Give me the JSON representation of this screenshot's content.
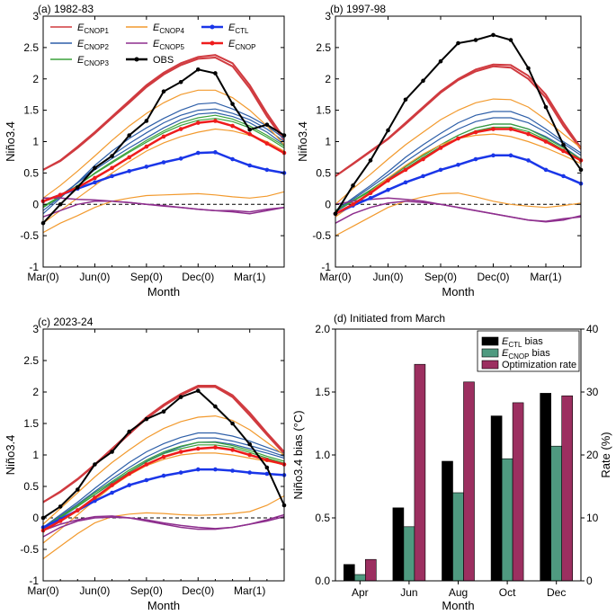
{
  "figure": {
    "colors": {
      "cnop1": "#d03a3f",
      "cnop2": "#2e5fa8",
      "cnop3": "#3aa23a",
      "cnop4": "#f29a2e",
      "cnop5": "#8e2f8e",
      "obs": "#000000",
      "ctl": "#1a36e8",
      "cnop": "#ee1c1c",
      "bar_ctl": "#000000",
      "bar_cnop": "#4f9a80",
      "bar_rate": "#9c2f60"
    }
  },
  "chart_data": [
    {
      "type": "line",
      "panel": "a",
      "title": "(a) 1982-83",
      "xlabel": "Month",
      "ylabel": "Niño3.4",
      "x_ticks": [
        "Mar(0)",
        "Jun(0)",
        "Sep(0)",
        "Dec(0)",
        "Mar(1)"
      ],
      "y_ticks": [
        "-1",
        "-0.5",
        "0",
        "0.5",
        "1",
        "1.5",
        "2",
        "2.5",
        "3"
      ],
      "ylim": [
        -1,
        3
      ],
      "xlim": [
        0,
        14
      ],
      "zero_line": "dashed",
      "legend": {
        "position": "top",
        "entries": [
          {
            "series": "cnop1",
            "label": "E",
            "sub": "CNOP1"
          },
          {
            "series": "cnop4",
            "label": "E",
            "sub": "CNOP4"
          },
          {
            "series": "ctl",
            "label": "E",
            "sub": "CTL"
          },
          {
            "series": "cnop2",
            "label": "E",
            "sub": "CNOP2"
          },
          {
            "series": "cnop5",
            "label": "E",
            "sub": "CNOP5"
          },
          {
            "series": "cnop",
            "label": "E",
            "sub": "CNOP"
          },
          {
            "series": "cnop3",
            "label": "E",
            "sub": "CNOP3"
          },
          {
            "series": "obs",
            "label": "OBS",
            "sub": ""
          }
        ]
      },
      "obs": [
        -0.3,
        0.0,
        0.27,
        0.58,
        0.77,
        1.1,
        1.33,
        1.8,
        1.95,
        2.15,
        2.09,
        1.6,
        1.19,
        1.27,
        1.1
      ],
      "ctl": [
        0.05,
        0.15,
        0.25,
        0.35,
        0.45,
        0.53,
        0.6,
        0.67,
        0.73,
        0.82,
        0.83,
        0.72,
        0.62,
        0.55,
        0.5
      ],
      "cnop": [
        0.05,
        0.15,
        0.27,
        0.42,
        0.58,
        0.75,
        0.92,
        1.08,
        1.2,
        1.3,
        1.33,
        1.25,
        1.12,
        0.97,
        0.82
      ],
      "ensemble": [
        {
          "group": "cnop1",
          "values": [
            0.55,
            0.7,
            0.92,
            1.15,
            1.4,
            1.65,
            1.9,
            2.1,
            2.25,
            2.35,
            2.38,
            2.25,
            1.9,
            1.45,
            1.05
          ]
        },
        {
          "group": "cnop1",
          "values": [
            0.55,
            0.69,
            0.9,
            1.13,
            1.38,
            1.62,
            1.87,
            2.07,
            2.22,
            2.32,
            2.34,
            2.2,
            1.85,
            1.4,
            1.02
          ]
        },
        {
          "group": "cnop2",
          "values": [
            -0.15,
            0.1,
            0.35,
            0.62,
            0.85,
            1.05,
            1.22,
            1.37,
            1.5,
            1.6,
            1.62,
            1.52,
            1.4,
            1.25,
            1.05
          ]
        },
        {
          "group": "cnop2",
          "values": [
            -0.1,
            0.12,
            0.35,
            0.58,
            0.78,
            0.97,
            1.14,
            1.3,
            1.42,
            1.5,
            1.52,
            1.45,
            1.35,
            1.2,
            1.0
          ]
        },
        {
          "group": "cnop2",
          "values": [
            -0.05,
            0.14,
            0.34,
            0.55,
            0.73,
            0.9,
            1.06,
            1.22,
            1.35,
            1.44,
            1.46,
            1.4,
            1.3,
            1.15,
            0.95
          ]
        },
        {
          "group": "cnop3",
          "values": [
            -0.05,
            0.12,
            0.3,
            0.5,
            0.68,
            0.85,
            1.02,
            1.17,
            1.3,
            1.38,
            1.42,
            1.36,
            1.25,
            1.1,
            0.93
          ]
        },
        {
          "group": "cnop3",
          "values": [
            -0.03,
            0.13,
            0.3,
            0.49,
            0.66,
            0.83,
            0.99,
            1.14,
            1.26,
            1.34,
            1.37,
            1.32,
            1.22,
            1.07,
            0.9
          ]
        },
        {
          "group": "cnop4",
          "values": [
            0.1,
            0.3,
            0.53,
            0.77,
            1.02,
            1.25,
            1.45,
            1.62,
            1.75,
            1.82,
            1.82,
            1.7,
            1.5,
            1.25,
            0.95
          ]
        },
        {
          "group": "cnop4",
          "values": [
            -0.45,
            -0.3,
            -0.18,
            -0.05,
            0.05,
            0.1,
            0.14,
            0.15,
            0.16,
            0.17,
            0.15,
            0.12,
            0.1,
            0.13,
            0.2
          ]
        },
        {
          "group": "cnop4",
          "values": [
            -0.3,
            -0.1,
            0.1,
            0.3,
            0.5,
            0.68,
            0.85,
            0.98,
            1.08,
            1.15,
            1.2,
            1.17,
            1.1,
            1.0,
            0.85
          ]
        },
        {
          "group": "cnop5",
          "values": [
            0.1,
            0.1,
            0.08,
            0.07,
            0.05,
            0.03,
            0.0,
            -0.02,
            -0.05,
            -0.08,
            -0.1,
            -0.12,
            -0.15,
            -0.1,
            -0.05
          ]
        },
        {
          "group": "cnop5",
          "values": [
            -0.2,
            -0.1,
            0.0,
            0.05,
            0.05,
            0.03,
            0.0,
            -0.03,
            -0.05,
            -0.08,
            -0.1,
            -0.1,
            -0.12,
            -0.08,
            -0.05
          ]
        }
      ]
    },
    {
      "type": "line",
      "panel": "b",
      "title": "(b) 1997-98",
      "xlabel": "Month",
      "ylabel": "Niño3.4",
      "x_ticks": [
        "Mar(0)",
        "Jun(0)",
        "Sep(0)",
        "Dec(0)",
        "Mar(1)"
      ],
      "y_ticks": [
        "-1",
        "-0.5",
        "0",
        "0.5",
        "1",
        "1.5",
        "2",
        "2.5",
        "3"
      ],
      "ylim": [
        -1,
        3
      ],
      "xlim": [
        0,
        14
      ],
      "zero_line": "dashed",
      "obs": [
        -0.15,
        0.3,
        0.7,
        1.18,
        1.67,
        1.97,
        2.28,
        2.57,
        2.62,
        2.7,
        2.62,
        2.17,
        1.55,
        0.95,
        0.55
      ],
      "ctl": [
        -0.15,
        -0.02,
        0.1,
        0.23,
        0.35,
        0.45,
        0.55,
        0.63,
        0.72,
        0.78,
        0.78,
        0.7,
        0.55,
        0.45,
        0.33
      ],
      "cnop": [
        -0.15,
        0.0,
        0.18,
        0.38,
        0.55,
        0.72,
        0.9,
        1.05,
        1.15,
        1.2,
        1.2,
        1.12,
        1.0,
        0.85,
        0.7
      ],
      "ensemble": [
        {
          "group": "cnop1",
          "values": [
            0.45,
            0.65,
            0.85,
            1.05,
            1.3,
            1.55,
            1.8,
            2.0,
            2.15,
            2.23,
            2.22,
            2.05,
            1.75,
            1.3,
            0.9
          ]
        },
        {
          "group": "cnop1",
          "values": [
            0.45,
            0.64,
            0.84,
            1.04,
            1.28,
            1.53,
            1.78,
            1.98,
            2.12,
            2.2,
            2.18,
            2.0,
            1.7,
            1.25,
            0.88
          ]
        },
        {
          "group": "cnop2",
          "values": [
            -0.1,
            0.1,
            0.3,
            0.52,
            0.75,
            0.95,
            1.13,
            1.3,
            1.42,
            1.48,
            1.48,
            1.38,
            1.2,
            1.0,
            0.82
          ]
        },
        {
          "group": "cnop2",
          "values": [
            -0.1,
            0.08,
            0.27,
            0.47,
            0.68,
            0.87,
            1.05,
            1.2,
            1.32,
            1.38,
            1.38,
            1.3,
            1.15,
            0.97,
            0.78
          ]
        },
        {
          "group": "cnop2",
          "values": [
            -0.12,
            0.05,
            0.22,
            0.4,
            0.6,
            0.78,
            0.95,
            1.1,
            1.22,
            1.28,
            1.28,
            1.2,
            1.08,
            0.92,
            0.72
          ]
        },
        {
          "group": "cnop3",
          "values": [
            -0.1,
            0.06,
            0.23,
            0.42,
            0.6,
            0.78,
            0.95,
            1.1,
            1.22,
            1.28,
            1.28,
            1.2,
            1.06,
            0.9,
            0.72
          ]
        },
        {
          "group": "cnop3",
          "values": [
            -0.1,
            0.05,
            0.21,
            0.39,
            0.57,
            0.75,
            0.92,
            1.06,
            1.17,
            1.23,
            1.23,
            1.16,
            1.03,
            0.87,
            0.7
          ]
        },
        {
          "group": "cnop4",
          "values": [
            0.0,
            0.25,
            0.48,
            0.72,
            0.95,
            1.15,
            1.35,
            1.5,
            1.62,
            1.68,
            1.67,
            1.55,
            1.35,
            1.12,
            0.9
          ]
        },
        {
          "group": "cnop4",
          "values": [
            -0.5,
            -0.35,
            -0.2,
            -0.05,
            0.05,
            0.12,
            0.17,
            0.18,
            0.12,
            0.05,
            0.0,
            -0.03,
            -0.05,
            -0.02,
            0.02
          ]
        },
        {
          "group": "cnop4",
          "values": [
            -0.2,
            0.0,
            0.2,
            0.42,
            0.62,
            0.8,
            0.95,
            1.05,
            1.1,
            1.12,
            1.08,
            1.0,
            0.9,
            0.78,
            0.65
          ]
        },
        {
          "group": "cnop5",
          "values": [
            0.0,
            0.05,
            0.08,
            0.1,
            0.08,
            0.05,
            0.0,
            -0.05,
            -0.1,
            -0.15,
            -0.2,
            -0.25,
            -0.27,
            -0.23,
            -0.2
          ]
        },
        {
          "group": "cnop5",
          "values": [
            -0.3,
            -0.15,
            -0.05,
            0.02,
            0.05,
            0.03,
            0.0,
            -0.05,
            -0.1,
            -0.15,
            -0.2,
            -0.25,
            -0.28,
            -0.25,
            -0.18
          ]
        }
      ]
    },
    {
      "type": "line",
      "panel": "c",
      "title": "(c) 2023-24",
      "xlabel": "Month",
      "ylabel": "Niño3.4",
      "x_ticks": [
        "Mar(0)",
        "Jun(0)",
        "Sep(0)",
        "Dec(0)",
        "Mar(1)"
      ],
      "y_ticks": [
        "-1",
        "-0.5",
        "0",
        "0.5",
        "1",
        "1.5",
        "2",
        "2.5",
        "3"
      ],
      "ylim": [
        -1,
        3
      ],
      "xlim": [
        0,
        14
      ],
      "zero_line": "dashed",
      "obs": [
        0.0,
        0.18,
        0.45,
        0.85,
        1.05,
        1.37,
        1.57,
        1.69,
        1.92,
        2.02,
        1.77,
        1.5,
        1.17,
        0.8,
        0.2
      ],
      "ctl": [
        -0.15,
        -0.02,
        0.12,
        0.27,
        0.4,
        0.52,
        0.6,
        0.67,
        0.72,
        0.77,
        0.77,
        0.75,
        0.72,
        0.7,
        0.68
      ],
      "cnop": [
        -0.2,
        -0.05,
        0.12,
        0.32,
        0.52,
        0.7,
        0.85,
        0.97,
        1.05,
        1.1,
        1.12,
        1.08,
        1.0,
        0.92,
        0.85
      ],
      "ensemble": [
        {
          "group": "cnop1",
          "values": [
            0.25,
            0.42,
            0.62,
            0.85,
            1.1,
            1.35,
            1.6,
            1.8,
            1.97,
            2.1,
            2.1,
            1.95,
            1.67,
            1.35,
            1.05
          ]
        },
        {
          "group": "cnop1",
          "values": [
            0.25,
            0.41,
            0.61,
            0.84,
            1.08,
            1.33,
            1.58,
            1.78,
            1.95,
            2.08,
            2.08,
            1.92,
            1.63,
            1.32,
            1.02
          ]
        },
        {
          "group": "cnop2",
          "values": [
            -0.15,
            0.05,
            0.25,
            0.47,
            0.68,
            0.88,
            1.05,
            1.18,
            1.28,
            1.35,
            1.35,
            1.3,
            1.22,
            1.12,
            1.02
          ]
        },
        {
          "group": "cnop2",
          "values": [
            -0.15,
            0.03,
            0.22,
            0.42,
            0.62,
            0.8,
            0.97,
            1.1,
            1.2,
            1.27,
            1.27,
            1.22,
            1.15,
            1.07,
            0.98
          ]
        },
        {
          "group": "cnop2",
          "values": [
            -0.18,
            0.0,
            0.18,
            0.37,
            0.56,
            0.73,
            0.9,
            1.03,
            1.13,
            1.2,
            1.21,
            1.17,
            1.1,
            1.03,
            0.95
          ]
        },
        {
          "group": "cnop3",
          "values": [
            -0.15,
            0.02,
            0.2,
            0.4,
            0.58,
            0.76,
            0.92,
            1.05,
            1.14,
            1.2,
            1.2,
            1.15,
            1.07,
            0.98,
            0.9
          ]
        },
        {
          "group": "cnop3",
          "values": [
            -0.15,
            0.01,
            0.18,
            0.37,
            0.55,
            0.73,
            0.89,
            1.02,
            1.1,
            1.16,
            1.16,
            1.12,
            1.04,
            0.95,
            0.87
          ]
        },
        {
          "group": "cnop4",
          "values": [
            -0.1,
            0.15,
            0.4,
            0.65,
            0.88,
            1.08,
            1.27,
            1.42,
            1.53,
            1.6,
            1.62,
            1.55,
            1.4,
            1.2,
            1.0
          ]
        },
        {
          "group": "cnop4",
          "values": [
            -0.65,
            -0.45,
            -0.25,
            -0.08,
            0.02,
            0.06,
            0.08,
            0.07,
            0.05,
            0.04,
            0.05,
            0.07,
            0.1,
            0.2,
            0.35
          ]
        },
        {
          "group": "cnop4",
          "values": [
            -0.4,
            -0.18,
            0.05,
            0.28,
            0.5,
            0.68,
            0.83,
            0.93,
            1.0,
            1.03,
            1.03,
            1.0,
            0.95,
            0.9,
            0.85
          ]
        },
        {
          "group": "cnop5",
          "values": [
            -0.2,
            -0.1,
            -0.03,
            0.02,
            0.03,
            0.0,
            -0.03,
            -0.08,
            -0.12,
            -0.15,
            -0.17,
            -0.15,
            -0.1,
            -0.05,
            0.02
          ]
        },
        {
          "group": "cnop5",
          "values": [
            -0.3,
            -0.15,
            -0.05,
            0.0,
            0.01,
            0.0,
            -0.05,
            -0.1,
            -0.15,
            -0.18,
            -0.18,
            -0.15,
            -0.1,
            -0.03,
            0.05
          ]
        }
      ]
    },
    {
      "type": "bar",
      "panel": "d",
      "title": "(d) Initiated from March",
      "xlabel": "Month",
      "ylabel": "Niño3.4 bias (°C)",
      "ylabel2": "Rate (%)",
      "categories": [
        "Apr",
        "Jun",
        "Aug",
        "Oct",
        "Dec"
      ],
      "y_ticks": [
        "0.0",
        "0.5",
        "1.0",
        "1.5",
        "2.0"
      ],
      "y2_ticks": [
        "0",
        "10",
        "20",
        "30",
        "40"
      ],
      "ylim": [
        0,
        2
      ],
      "y2lim": [
        0,
        40
      ],
      "legend": {
        "position": "top-right",
        "entries": [
          {
            "series": "bar_ctl",
            "label": "E",
            "sub": "CTL",
            "suffix": " bias"
          },
          {
            "series": "bar_cnop",
            "label": "E",
            "sub": "CNOP",
            "suffix": " bias"
          },
          {
            "series": "bar_rate",
            "label": "Optimization rate",
            "sub": "",
            "suffix": ""
          }
        ]
      },
      "series": [
        {
          "name": "ECTL bias",
          "color_key": "bar_ctl",
          "axis": "left",
          "values": [
            0.13,
            0.58,
            0.95,
            1.31,
            1.49
          ]
        },
        {
          "name": "ECNOP bias",
          "color_key": "bar_cnop",
          "axis": "left",
          "values": [
            0.05,
            0.43,
            0.7,
            0.97,
            1.07
          ]
        },
        {
          "name": "Optimization rate",
          "color_key": "bar_rate",
          "axis": "right",
          "values": [
            3.4,
            34.4,
            31.6,
            28.3,
            29.4
          ]
        }
      ]
    }
  ]
}
